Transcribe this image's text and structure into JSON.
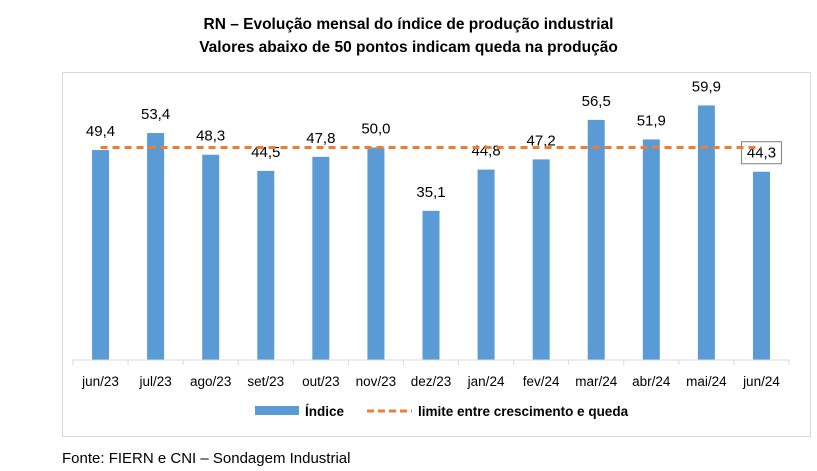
{
  "title": "RN – Evolução mensal do índice de produção industrial",
  "subtitle": "Valores abaixo de 50 pontos indicam queda na produção",
  "source": "Fonte: FIERN e CNI – Sondagem Industrial",
  "colors": {
    "bar": "#5b9bd5",
    "threshold": "#ed7d31",
    "axis": "#d9d9d9"
  },
  "chart_data": {
    "type": "bar",
    "categories": [
      "jun/23",
      "jul/23",
      "ago/23",
      "set/23",
      "out/23",
      "nov/23",
      "dez/23",
      "jan/24",
      "fev/24",
      "mar/24",
      "abr/24",
      "mai/24",
      "jun/24"
    ],
    "series": [
      {
        "name": "Índice",
        "values": [
          49.4,
          53.4,
          48.3,
          44.5,
          47.8,
          50.0,
          35.1,
          44.8,
          47.2,
          56.5,
          51.9,
          59.9,
          44.3
        ],
        "labels": [
          "49,4",
          "53,4",
          "48,3",
          "44,5",
          "47,8",
          "50,0",
          "35,1",
          "44,8",
          "47,2",
          "56,5",
          "51,9",
          "59,9",
          "44,3"
        ]
      }
    ],
    "reference_line": {
      "name": "limite entre crescimento e queda",
      "value": 50,
      "style": "dashed"
    },
    "ylim": [
      0,
      64
    ],
    "grid": false,
    "legend": "bottom"
  }
}
